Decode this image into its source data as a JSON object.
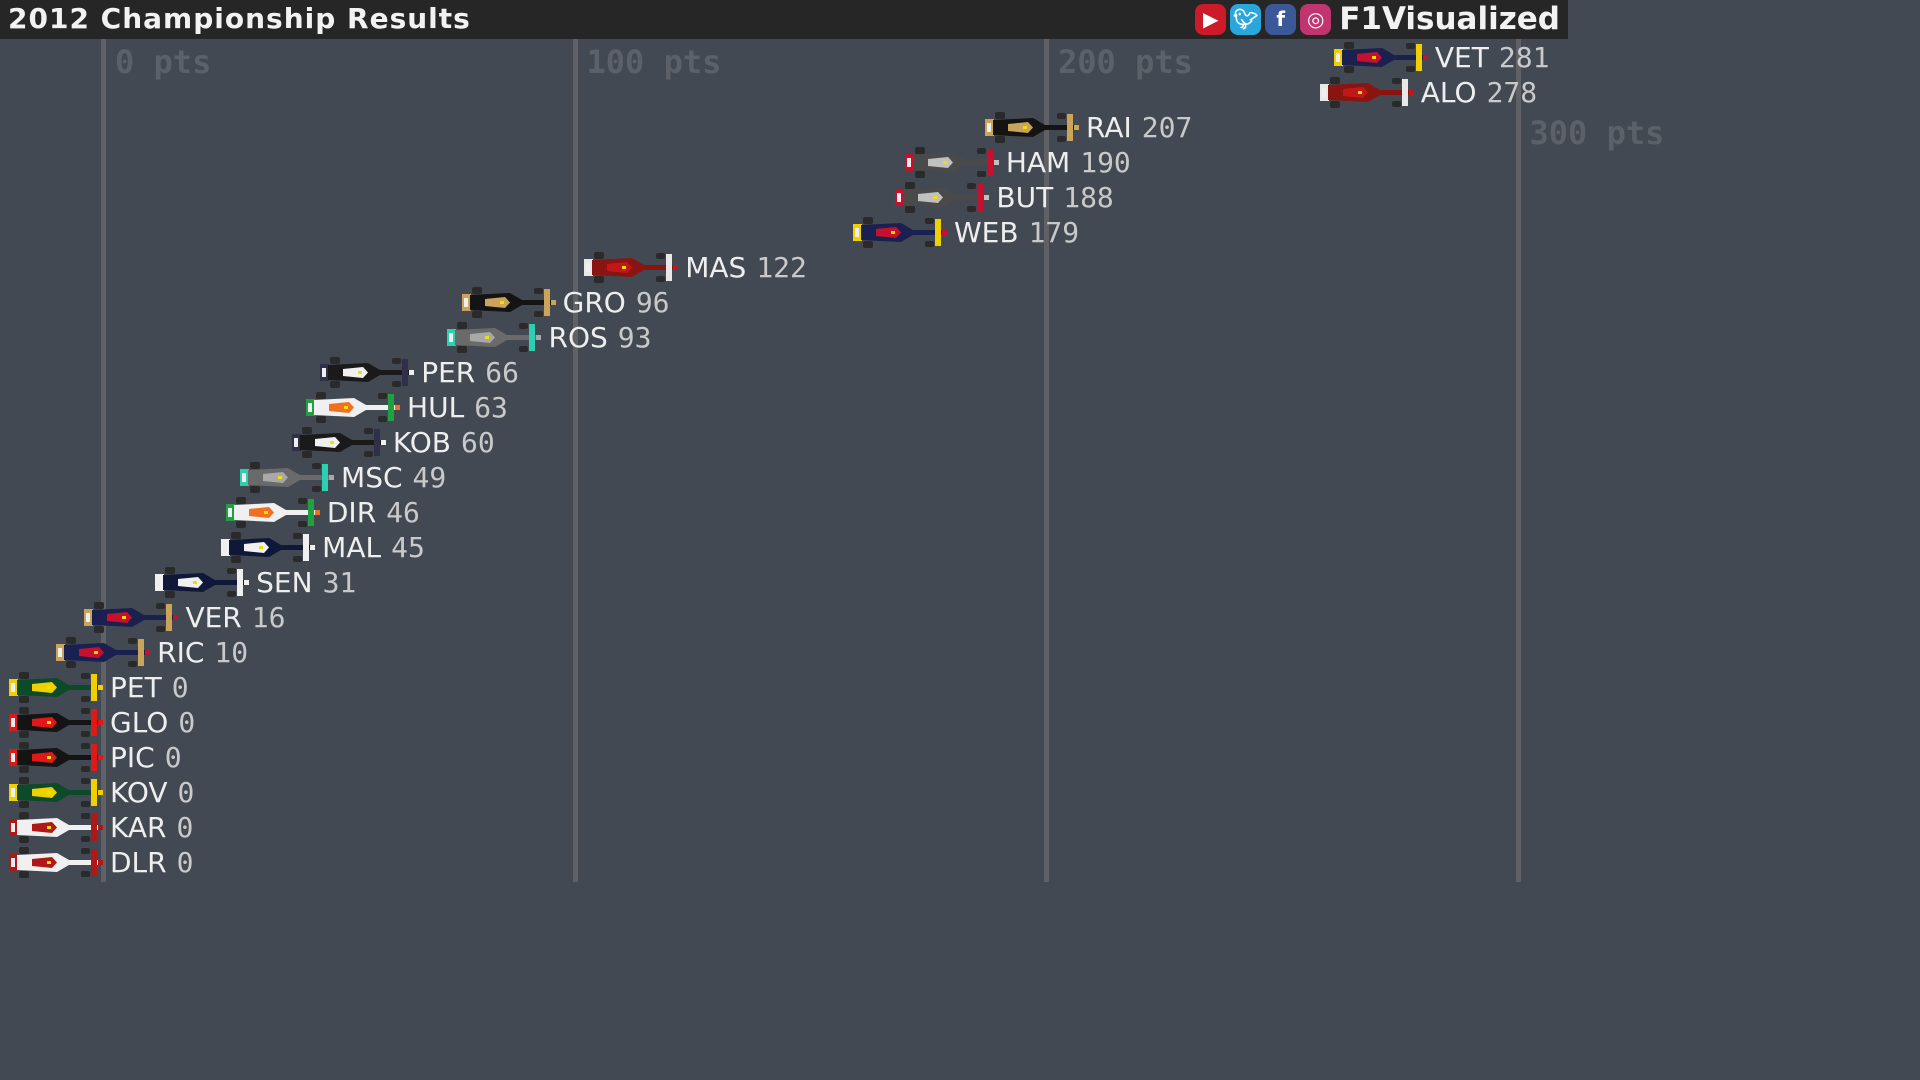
{
  "header": {
    "title": "2012 Championship Results",
    "brand": "F1Visualized",
    "social": [
      {
        "icon": "youtube-icon",
        "color": "#cc1a2a"
      },
      {
        "icon": "twitter-icon",
        "color": "#2aa6dc"
      },
      {
        "icon": "facebook-icon",
        "color": "#3b5998"
      },
      {
        "icon": "instagram-icon",
        "color": "#c1356f"
      }
    ]
  },
  "chart_data": {
    "type": "bar",
    "title": "2012 Championship Results",
    "xlim": [
      0,
      300
    ],
    "x_ticks": [
      {
        "value": 0,
        "label": "0 pts"
      },
      {
        "value": 100,
        "label": "100 pts"
      },
      {
        "value": 200,
        "label": "200 pts"
      },
      {
        "value": 300,
        "label": "300 pts"
      }
    ],
    "grid": true,
    "drivers": [
      {
        "code": "VET",
        "points": 281,
        "colors": [
          "#1a2050",
          "#c8102e",
          "#f0d000"
        ]
      },
      {
        "code": "ALO",
        "points": 278,
        "colors": [
          "#8a1410",
          "#c01818",
          "#e8e8e8"
        ]
      },
      {
        "code": "RAI",
        "points": 207,
        "colors": [
          "#141414",
          "#c9a45a",
          "#c9a45a"
        ]
      },
      {
        "code": "HAM",
        "points": 190,
        "colors": [
          "#4a4a4a",
          "#c0c0c0",
          "#c8102e"
        ]
      },
      {
        "code": "BUT",
        "points": 188,
        "colors": [
          "#4a4a4a",
          "#c0c0c0",
          "#c8102e"
        ]
      },
      {
        "code": "WEB",
        "points": 179,
        "colors": [
          "#1a2050",
          "#c8102e",
          "#f0d000"
        ]
      },
      {
        "code": "MAS",
        "points": 122,
        "colors": [
          "#8a1410",
          "#c01818",
          "#e8e8e8"
        ]
      },
      {
        "code": "GRO",
        "points": 96,
        "colors": [
          "#141414",
          "#c9a45a",
          "#c9a45a"
        ]
      },
      {
        "code": "ROS",
        "points": 93,
        "colors": [
          "#6a6a6a",
          "#a8a8a8",
          "#2ad0b0"
        ]
      },
      {
        "code": "PER",
        "points": 66,
        "colors": [
          "#1a1a1a",
          "#f0f0f0",
          "#30304a"
        ]
      },
      {
        "code": "HUL",
        "points": 63,
        "colors": [
          "#f0f0f0",
          "#f07020",
          "#20a040"
        ]
      },
      {
        "code": "KOB",
        "points": 60,
        "colors": [
          "#1a1a1a",
          "#f0f0f0",
          "#30304a"
        ]
      },
      {
        "code": "MSC",
        "points": 49,
        "colors": [
          "#6a6a6a",
          "#a8a8a8",
          "#2ad0b0"
        ]
      },
      {
        "code": "DIR",
        "points": 46,
        "colors": [
          "#f0f0f0",
          "#f07020",
          "#20a040"
        ]
      },
      {
        "code": "MAL",
        "points": 45,
        "colors": [
          "#10183a",
          "#f0f0f0",
          "#f0f0f0"
        ]
      },
      {
        "code": "SEN",
        "points": 31,
        "colors": [
          "#10183a",
          "#f0f0f0",
          "#f0f0f0"
        ]
      },
      {
        "code": "VER",
        "points": 16,
        "colors": [
          "#1a2050",
          "#c8102e",
          "#c9a45a"
        ]
      },
      {
        "code": "RIC",
        "points": 10,
        "colors": [
          "#1a2050",
          "#c8102e",
          "#c9a45a"
        ]
      },
      {
        "code": "PET",
        "points": 0,
        "colors": [
          "#0c4a2a",
          "#f0d000",
          "#f0d000"
        ]
      },
      {
        "code": "GLO",
        "points": 0,
        "colors": [
          "#141414",
          "#e01818",
          "#e01818"
        ]
      },
      {
        "code": "PIC",
        "points": 0,
        "colors": [
          "#141414",
          "#e01818",
          "#e01818"
        ]
      },
      {
        "code": "KOV",
        "points": 0,
        "colors": [
          "#0c4a2a",
          "#f0d000",
          "#f0d000"
        ]
      },
      {
        "code": "KAR",
        "points": 0,
        "colors": [
          "#f0f0f0",
          "#b01818",
          "#b01818"
        ]
      },
      {
        "code": "DLR",
        "points": 0,
        "colors": [
          "#f0f0f0",
          "#b01818",
          "#b01818"
        ]
      }
    ]
  }
}
